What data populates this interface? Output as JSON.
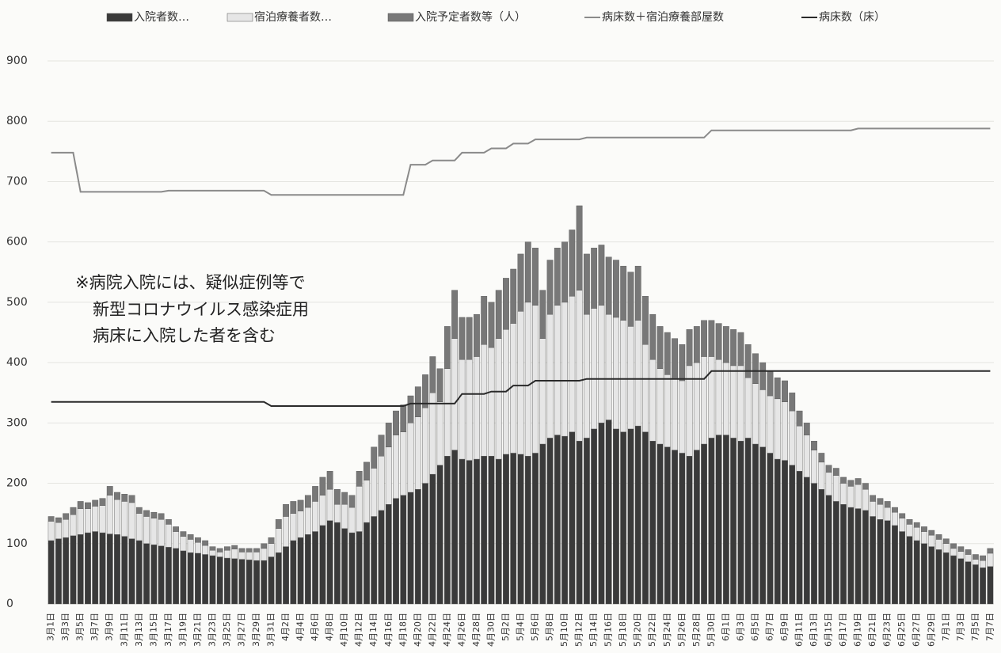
{
  "chart_data": {
    "type": "stacked-bar-line",
    "legend": "top",
    "annotation": [
      "※病院入院には、疑似症例等で",
      "新型コロナウイルス感染症用",
      "病床に入院した者を含む"
    ],
    "categories": [
      "3月1日",
      null,
      "3月3日",
      null,
      "3月5日",
      null,
      "3月7日",
      null,
      "3月9日",
      null,
      "3月11日",
      null,
      "3月13日",
      null,
      "3月15日",
      null,
      "3月17日",
      null,
      "3月19日",
      null,
      "3月21日",
      null,
      "3月23日",
      null,
      "3月25日",
      null,
      "3月27日",
      null,
      "3月29日",
      null,
      "3月31日",
      null,
      "4月2日",
      null,
      "4月4日",
      null,
      "4月6日",
      null,
      "4月8日",
      null,
      "4月10日",
      null,
      "4月12日",
      null,
      "4月14日",
      null,
      "4月16日",
      null,
      "4月18日",
      null,
      "4月20日",
      null,
      "4月22日",
      null,
      "4月24日",
      null,
      "4月26日",
      null,
      "4月28日",
      null,
      "4月30日",
      null,
      "5月2日",
      null,
      "5月4日",
      null,
      "5月6日",
      null,
      "5月8日",
      null,
      "5月10日",
      null,
      "5月12日",
      null,
      "5月14日",
      null,
      "5月16日",
      null,
      "5月18日",
      null,
      "5月20日",
      null,
      "5月22日",
      null,
      "5月24日",
      null,
      "5月26日",
      null,
      "5月28日",
      null,
      "5月30日",
      null,
      "6月1日",
      null,
      "6月3日",
      null,
      "6月5日",
      null,
      "6月7日",
      null,
      "6月9日",
      null,
      "6月11日",
      null,
      "6月13日",
      null,
      "6月15日",
      null,
      "6月17日",
      null,
      "6月19日",
      null,
      "6月21日",
      null,
      "6月23日",
      null,
      "6月25日",
      null,
      "6月27日",
      null,
      "6月29日",
      null,
      "7月1日",
      null,
      "7月3日",
      null,
      "7月5日",
      null,
      "7月7日"
    ],
    "series": [
      {
        "name": "入院者数…",
        "kind": "bar",
        "color": "#3a3a3a",
        "values": [
          105,
          108,
          110,
          113,
          115,
          118,
          120,
          118,
          116,
          115,
          112,
          108,
          105,
          100,
          98,
          96,
          94,
          92,
          88,
          85,
          84,
          82,
          80,
          78,
          76,
          75,
          74,
          73,
          72,
          72,
          78,
          85,
          95,
          105,
          110,
          115,
          120,
          130,
          138,
          135,
          125,
          118,
          120,
          135,
          145,
          155,
          165,
          175,
          180,
          185,
          190,
          200,
          215,
          230,
          245,
          255,
          240,
          238,
          240,
          245,
          245,
          240,
          248,
          250,
          248,
          245,
          250,
          265,
          275,
          280,
          278,
          285,
          270,
          275,
          290,
          300,
          305,
          290,
          285,
          290,
          295,
          285,
          270,
          265,
          260,
          255,
          250,
          245,
          255,
          265,
          275,
          280,
          280,
          275,
          270,
          275,
          265,
          260,
          250,
          240,
          238,
          230,
          220,
          210,
          200,
          190,
          180,
          170,
          165,
          160,
          158,
          155,
          145,
          140,
          138,
          130,
          120,
          112,
          105,
          100,
          95,
          90,
          85,
          80,
          75,
          70,
          65,
          60,
          62
        ]
      },
      {
        "name": "宿泊療養者数…",
        "kind": "bar",
        "color": "#e6e6e6",
        "values": [
          32,
          27,
          30,
          35,
          43,
          40,
          42,
          45,
          64,
          58,
          58,
          60,
          45,
          45,
          44,
          44,
          38,
          28,
          24,
          22,
          18,
          15,
          9,
          8,
          13,
          16,
          12,
          13,
          14,
          20,
          22,
          40,
          50,
          45,
          44,
          45,
          50,
          50,
          52,
          30,
          40,
          42,
          75,
          70,
          80,
          90,
          95,
          105,
          105,
          115,
          120,
          125,
          135,
          105,
          145,
          185,
          165,
          167,
          170,
          185,
          180,
          200,
          207,
          215,
          237,
          255,
          245,
          175,
          205,
          215,
          222,
          225,
          250,
          205,
          200,
          195,
          175,
          185,
          185,
          170,
          175,
          145,
          135,
          125,
          120,
          120,
          120,
          150,
          145,
          145,
          135,
          125,
          120,
          120,
          125,
          100,
          100,
          95,
          95,
          100,
          97,
          90,
          75,
          70,
          55,
          45,
          38,
          43,
          35,
          35,
          40,
          35,
          25,
          25,
          22,
          22,
          22,
          20,
          22,
          20,
          19,
          17,
          15,
          12,
          12,
          12,
          9,
          12,
          22
        ]
      },
      {
        "name": "入院予定者数等（人）",
        "kind": "bar",
        "color": "#787878",
        "values": [
          8,
          8,
          10,
          12,
          12,
          10,
          10,
          12,
          15,
          12,
          12,
          12,
          10,
          10,
          10,
          10,
          8,
          8,
          8,
          8,
          8,
          8,
          6,
          6,
          6,
          6,
          6,
          6,
          6,
          8,
          10,
          15,
          20,
          20,
          18,
          20,
          25,
          30,
          30,
          25,
          20,
          20,
          25,
          30,
          35,
          35,
          40,
          40,
          45,
          45,
          50,
          55,
          60,
          55,
          70,
          80,
          70,
          70,
          70,
          80,
          75,
          80,
          85,
          90,
          95,
          100,
          95,
          80,
          90,
          95,
          100,
          110,
          140,
          100,
          100,
          100,
          95,
          95,
          90,
          90,
          90,
          80,
          75,
          70,
          70,
          65,
          60,
          60,
          60,
          60,
          60,
          60,
          60,
          60,
          55,
          55,
          50,
          45,
          40,
          35,
          35,
          30,
          25,
          20,
          15,
          15,
          12,
          12,
          10,
          10,
          10,
          10,
          10,
          10,
          10,
          8,
          8,
          8,
          8,
          8,
          8,
          8,
          8,
          8,
          8,
          8,
          8,
          8,
          8
        ]
      },
      {
        "name": "病床数＋宿泊療養部屋数",
        "kind": "line",
        "color": "#8a8a8a",
        "values": [
          748,
          748,
          748,
          748,
          683,
          683,
          683,
          683,
          683,
          683,
          683,
          683,
          683,
          683,
          683,
          683,
          685,
          685,
          685,
          685,
          685,
          685,
          685,
          685,
          685,
          685,
          685,
          685,
          685,
          685,
          678,
          678,
          678,
          678,
          678,
          678,
          678,
          678,
          678,
          678,
          678,
          678,
          678,
          678,
          678,
          678,
          678,
          678,
          678,
          728,
          728,
          728,
          735,
          735,
          735,
          735,
          748,
          748,
          748,
          748,
          755,
          755,
          755,
          763,
          763,
          763,
          770,
          770,
          770,
          770,
          770,
          770,
          770,
          773,
          773,
          773,
          773,
          773,
          773,
          773,
          773,
          773,
          773,
          773,
          773,
          773,
          773,
          773,
          773,
          773,
          785,
          785,
          785,
          785,
          785,
          785,
          785,
          785,
          785,
          785,
          785,
          785,
          785,
          785,
          785,
          785,
          785,
          785,
          785,
          785,
          788,
          788,
          788,
          788,
          788,
          788,
          788,
          788,
          788,
          788,
          788,
          788,
          788,
          788,
          788,
          788,
          788,
          788,
          788
        ]
      },
      {
        "name": "病床数（床）",
        "kind": "line",
        "color": "#2a2a2a",
        "values": [
          335,
          335,
          335,
          335,
          335,
          335,
          335,
          335,
          335,
          335,
          335,
          335,
          335,
          335,
          335,
          335,
          335,
          335,
          335,
          335,
          335,
          335,
          335,
          335,
          335,
          335,
          335,
          335,
          335,
          335,
          328,
          328,
          328,
          328,
          328,
          328,
          328,
          328,
          328,
          328,
          328,
          328,
          328,
          328,
          328,
          328,
          328,
          328,
          328,
          332,
          332,
          332,
          332,
          332,
          332,
          332,
          348,
          348,
          348,
          348,
          352,
          352,
          352,
          362,
          362,
          362,
          370,
          370,
          370,
          370,
          370,
          370,
          370,
          373,
          373,
          373,
          373,
          373,
          373,
          373,
          373,
          373,
          373,
          373,
          373,
          373,
          373,
          373,
          373,
          373,
          386,
          386,
          386,
          386,
          386,
          386,
          386,
          386,
          386,
          386,
          386,
          386,
          386,
          386,
          386,
          386,
          386,
          386,
          386,
          386,
          386,
          386,
          386,
          386,
          386,
          386,
          386,
          386,
          386,
          386,
          386,
          386,
          386,
          386,
          386,
          386,
          386,
          386,
          386
        ]
      }
    ],
    "ylim": [
      0,
      900
    ],
    "yticks": [
      0,
      100,
      200,
      300,
      400,
      500,
      600,
      700,
      800,
      900
    ],
    "grid": true
  }
}
